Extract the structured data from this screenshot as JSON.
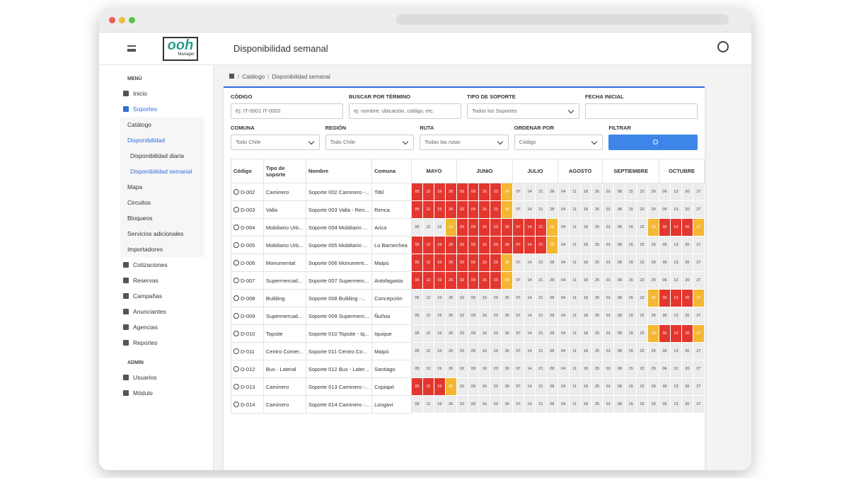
{
  "logo": {
    "main": "ooh",
    "sub": "Manager"
  },
  "header": {
    "title": "Disponibilidad semanal"
  },
  "breadcrumb": [
    "Catálogo",
    "Disponibilidad semanal"
  ],
  "sidebar": {
    "menu_label": "MENÚ",
    "items": [
      {
        "label": "Inicio"
      },
      {
        "label": "Soportes",
        "active": true,
        "children": [
          {
            "label": "Catálogo"
          },
          {
            "label": "Disponibilidad",
            "active": true,
            "children": [
              {
                "label": "Disponibilidad diaria"
              },
              {
                "label": "Disponibilidad semanal",
                "active": true
              }
            ]
          },
          {
            "label": "Mapa"
          },
          {
            "label": "Circuitos"
          },
          {
            "label": "Bloqueos"
          },
          {
            "label": "Servicios adicionales"
          },
          {
            "label": "Importadores"
          }
        ]
      },
      {
        "label": "Cotizaciones"
      },
      {
        "label": "Reservas"
      },
      {
        "label": "Campañas"
      },
      {
        "label": "Anunciantes"
      },
      {
        "label": "Agencias"
      },
      {
        "label": "Reportes"
      }
    ],
    "admin_label": "ADMIN",
    "admin_items": [
      {
        "label": "Usuarios"
      },
      {
        "label": "Módulo"
      }
    ]
  },
  "filters": [
    [
      {
        "label": "CÓDIGO",
        "kind": "input",
        "value": "Ej: IT-0001 IT-0002"
      },
      {
        "label": "BUSCAR POR TÉRMINO",
        "kind": "input",
        "value": "ej: nombre, ubicación, código, etc."
      },
      {
        "label": "TIPO DE SOPORTE",
        "kind": "select",
        "value": "Todos los Soportes"
      },
      {
        "label": "FECHA INICIAL",
        "kind": "input"
      }
    ],
    [
      {
        "label": "COMUNA",
        "kind": "select",
        "value": "Todo Chile"
      },
      {
        "label": "REGIÓN",
        "kind": "select",
        "value": "Todo Chile"
      },
      {
        "label": "RUTA",
        "kind": "select",
        "value": "Todas las rutas"
      },
      {
        "label": "ORDENAR POR",
        "kind": "select",
        "value": "Código"
      },
      {
        "label": "FILTRAR",
        "kind": "button"
      }
    ]
  ],
  "table": {
    "columns": [
      "Código",
      "Tipo de soporte",
      "Nombre",
      "Comuna"
    ],
    "months": [
      {
        "name": "MAYO",
        "days": [
          "05",
          "12",
          "19",
          "26"
        ]
      },
      {
        "name": "JUNIO",
        "days": [
          "02",
          "09",
          "16",
          "23",
          "30"
        ]
      },
      {
        "name": "JULIO",
        "days": [
          "07",
          "14",
          "21",
          "28"
        ]
      },
      {
        "name": "AGOSTO",
        "days": [
          "04",
          "11",
          "18",
          "25"
        ]
      },
      {
        "name": "SEPTIEMBRE",
        "days": [
          "01",
          "08",
          "15",
          "22",
          "29"
        ]
      },
      {
        "name": "OCTUBRE",
        "days": [
          "06",
          "13",
          "20",
          "27"
        ]
      }
    ],
    "status_colors": {
      "R": "#e2362f",
      "Y": "#f4b731",
      "F": "#ececec"
    },
    "rows": [
      {
        "code": "D-002",
        "type": "Caminero",
        "name": "Soporte 002 Caminero -...",
        "commune": "Tiltil",
        "status": "RRRRRRRRYFFFFFFFFFFFFFFFFF"
      },
      {
        "code": "D-003",
        "type": "Valla",
        "name": "Soporte 003 Valla - Ren...",
        "commune": "Renca",
        "status": "RRRRRRRRYFFFFFFFFFFFFFFFFF"
      },
      {
        "code": "D-004",
        "type": "Mobiliario Urb...",
        "name": "Soporte 004 Mobiliario ...",
        "commune": "Arica",
        "status": "FFFYRRRRRRRRYFFFFFFFFYRRRY"
      },
      {
        "code": "D-005",
        "type": "Mobiliario Urb...",
        "name": "Soporte 005 Mobiliario ...",
        "commune": "Lo Barnechea",
        "status": "RRRRRRRRRRRRYFFFFFFFFFFFFF"
      },
      {
        "code": "D-006",
        "type": "Monumental",
        "name": "Soporte 006 Monument...",
        "commune": "Maipú",
        "status": "RRRRRRRRYFFFFFFFFFFFFFFFFF"
      },
      {
        "code": "D-007",
        "type": "Supermercad...",
        "name": "Soporte 007 Supermerc...",
        "commune": "Antofagasta",
        "status": "RRRRRRRRYFFFFFFFFFFFFFFFFF"
      },
      {
        "code": "D-008",
        "type": "Building",
        "name": "Soporte 008 Building -...",
        "commune": "Concepción",
        "status": "FFFFFFFFFFFFFFFFFFFFFYRRRY"
      },
      {
        "code": "D-009",
        "type": "Supermercad...",
        "name": "Soporte 009 Supermerc...",
        "commune": "Ñuñoa",
        "status": "FFFFFFFFFFFFFFFFFFFFFFFFFF"
      },
      {
        "code": "D-010",
        "type": "Topsite",
        "name": "Soporte 010 Topsite - Iq...",
        "commune": "Iquique",
        "status": "FFFFFFFFFFFFFFFFFFFFFYRRRY"
      },
      {
        "code": "D-011",
        "type": "Centro Comer...",
        "name": "Soporte 011 Centro Co...",
        "commune": "Maipú",
        "status": "FFFFFFFFFFFFFFFFFFFFFFFFFF"
      },
      {
        "code": "D-012",
        "type": "Bus - Lateral",
        "name": "Soporte 012 Bus - Later...",
        "commune": "Santiago",
        "status": "FFFFFFFFFFFFFFFFFFFFFFFFFF"
      },
      {
        "code": "D-013",
        "type": "Caminero",
        "name": "Soporte 013 Caminero -...",
        "commune": "Copiapó",
        "status": "RRRYFFFFFFFFFFFFFFFFFFFFFF"
      },
      {
        "code": "D-014",
        "type": "Caminero",
        "name": "Soporte 014 Caminero -...",
        "commune": "Longaví",
        "status": "FFFFFFFFFFFFFFFFFFFFFFFFFF"
      }
    ]
  }
}
